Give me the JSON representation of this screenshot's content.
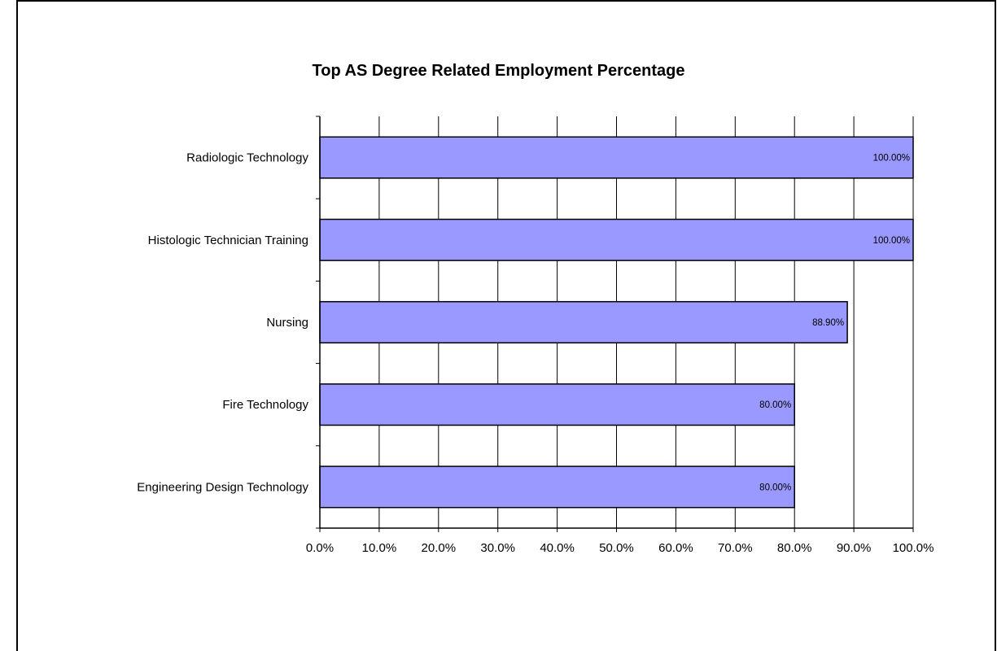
{
  "chart_data": {
    "type": "bar",
    "orientation": "horizontal",
    "title": "Top AS Degree Related Employment Percentage",
    "xlabel": "",
    "ylabel": "",
    "categories": [
      "Radiologic Technology",
      "Histologic Technician Training",
      "Nursing",
      "Fire Technology",
      "Engineering Design Technology"
    ],
    "values": [
      100.0,
      100.0,
      88.9,
      80.0,
      80.0
    ],
    "data_labels": [
      "100.00%",
      "100.00%",
      "88.90%",
      "80.00%",
      "80.00%"
    ],
    "xlim": [
      0,
      100
    ],
    "x_ticks": [
      0,
      10,
      20,
      30,
      40,
      50,
      60,
      70,
      80,
      90,
      100
    ],
    "x_tick_labels": [
      "0.0%",
      "10.0%",
      "20.0%",
      "30.0%",
      "40.0%",
      "50.0%",
      "60.0%",
      "70.0%",
      "80.0%",
      "90.0%",
      "100.0%"
    ],
    "grid": true,
    "legend": "none",
    "colors": {
      "bar_fill": "#9999ff",
      "bar_stroke": "#000000",
      "gridline": "#000000",
      "background": "#ffffff"
    }
  }
}
